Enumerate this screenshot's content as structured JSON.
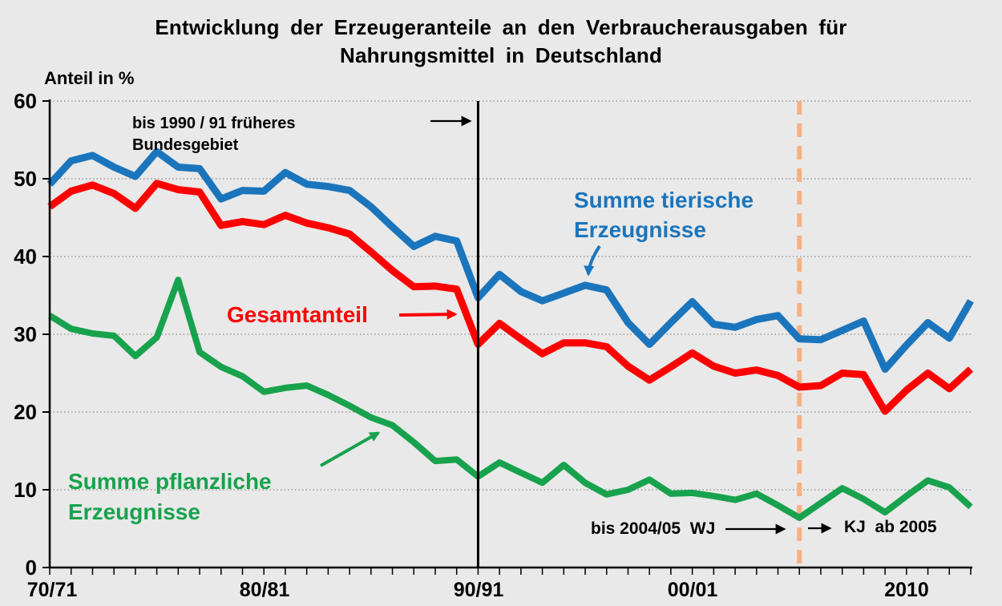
{
  "title": "Entwicklung der Erzeugeranteile an den Verbraucherausgaben für Nahrungsmittel in Deutschland",
  "y_axis_title": "Anteil in %",
  "y_ticks": [
    "60",
    "50",
    "40",
    "30",
    "20",
    "10",
    "0"
  ],
  "x_ticks": [
    "70/71",
    "80/81",
    "90/91",
    "00/01",
    "2010"
  ],
  "annotations": {
    "pre1991": "bis 1990 / 91 früheres Bundesgebiet",
    "tierische": "Summe tierische Erzeugnisse",
    "gesamt": "Gesamtanteil",
    "pflanzliche": "Summe pflanzliche Erzeugnisse",
    "wj": "bis 2004/05  WJ",
    "kj": "KJ  ab 2005"
  },
  "colors": {
    "animal_line": "#1B75BC",
    "total_line": "#FF0000",
    "plant_line": "#18A24D",
    "dashed_vline": "#F6B183",
    "solid_vline": "#000000",
    "grid": "#8A8A8A",
    "background": "#E9E9E9"
  },
  "chart_data": {
    "type": "line",
    "title": "Entwicklung der Erzeugeranteile an den Verbraucherausgaben für Nahrungsmittel in Deutschland",
    "ylabel": "Anteil in %",
    "ylim": [
      0,
      60
    ],
    "grid": true,
    "x": [
      "70/71",
      "71/72",
      "72/73",
      "73/74",
      "74/75",
      "75/76",
      "76/77",
      "77/78",
      "78/79",
      "79/80",
      "80/81",
      "81/82",
      "82/83",
      "83/84",
      "84/85",
      "85/86",
      "86/87",
      "87/88",
      "88/89",
      "89/90",
      "90/91",
      "91/92",
      "92/93",
      "93/94",
      "94/95",
      "95/96",
      "96/97",
      "97/98",
      "98/99",
      "99/00",
      "00/01",
      "01/02",
      "02/03",
      "03/04",
      "04/05",
      "2005",
      "2006",
      "2007",
      "2008",
      "2009",
      "2010",
      "2011",
      "2012",
      "2013"
    ],
    "x_major_ticks": [
      "70/71",
      "80/81",
      "90/91",
      "00/01",
      "2010"
    ],
    "vline_solid_at": "90/91",
    "vline_dashed_at": "2005",
    "series": [
      {
        "name": "Summe tierische Erzeugnisse",
        "color": "#1B75BC",
        "values": [
          49.3,
          52.3,
          53.0,
          51.5,
          50.3,
          53.5,
          51.5,
          51.3,
          47.4,
          48.5,
          48.4,
          50.8,
          49.3,
          49.0,
          48.5,
          46.4,
          43.8,
          41.3,
          42.6,
          42.0,
          34.7,
          37.7,
          35.5,
          34.3,
          35.3,
          36.3,
          35.7,
          31.5,
          28.7,
          31.5,
          34.2,
          31.3,
          30.9,
          31.9,
          32.4,
          29.4,
          29.3,
          30.5,
          31.7,
          25.5,
          28.6,
          31.5,
          29.5,
          34.3
        ]
      },
      {
        "name": "Gesamtanteil",
        "color": "#FF0000",
        "values": [
          46.4,
          48.4,
          49.2,
          48.1,
          46.2,
          49.4,
          48.6,
          48.3,
          44.0,
          44.5,
          44.1,
          45.3,
          44.3,
          43.7,
          42.9,
          40.6,
          38.2,
          36.1,
          36.2,
          35.8,
          28.7,
          31.4,
          29.4,
          27.5,
          28.9,
          28.9,
          28.4,
          25.9,
          24.1,
          25.8,
          27.6,
          25.9,
          25.0,
          25.4,
          24.7,
          23.2,
          23.4,
          25.0,
          24.8,
          20.1,
          22.8,
          25.0,
          23.0,
          25.5
        ]
      },
      {
        "name": "Summe pflanzliche Erzeugnisse",
        "color": "#18A24D",
        "values": [
          32.4,
          30.7,
          30.1,
          29.8,
          27.2,
          29.6,
          37.0,
          27.7,
          25.8,
          24.6,
          22.6,
          23.1,
          23.4,
          22.2,
          20.8,
          19.3,
          18.3,
          16.1,
          13.7,
          13.9,
          11.7,
          13.5,
          12.2,
          10.9,
          13.2,
          10.9,
          9.4,
          10.0,
          11.3,
          9.5,
          9.6,
          9.2,
          8.7,
          9.5,
          8.0,
          6.4,
          8.3,
          10.2,
          8.8,
          7.1,
          9.2,
          11.2,
          10.3,
          7.8
        ]
      }
    ]
  }
}
